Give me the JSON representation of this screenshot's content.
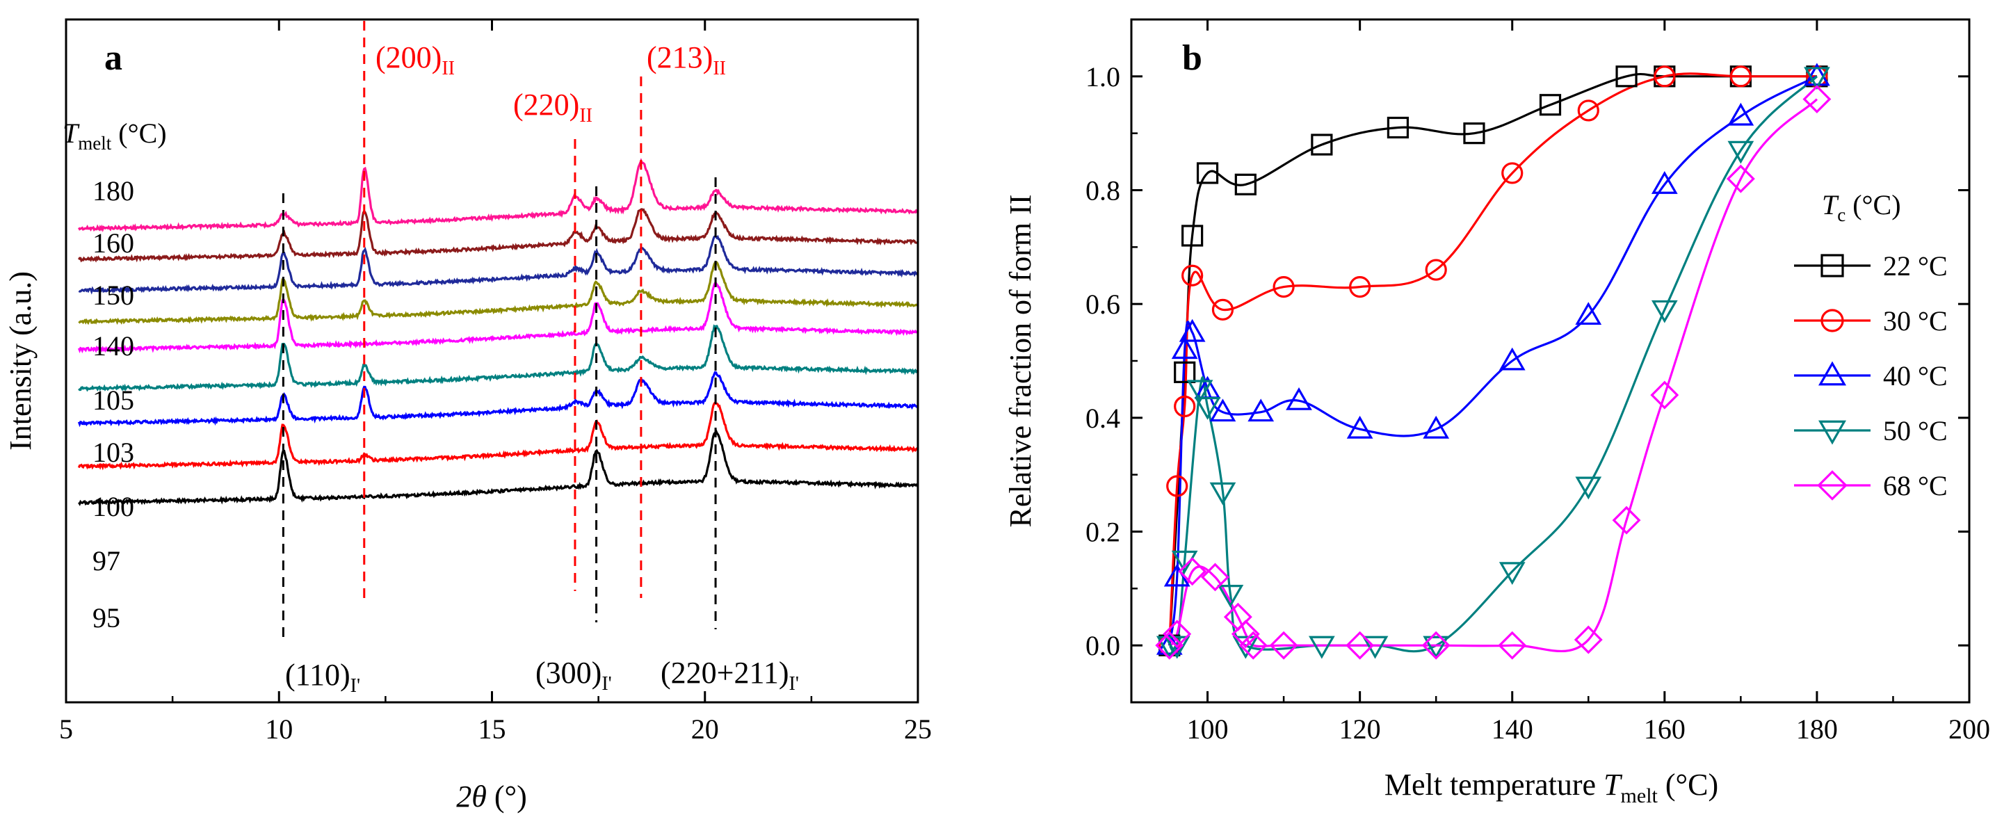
{
  "chart_data": [
    {
      "panel": "a",
      "type": "line",
      "title": "",
      "xlabel": "2θ (°)",
      "ylabel": "Intensity (a.u.)",
      "xlim": [
        5,
        25
      ],
      "xticks": [
        "5",
        "10",
        "15",
        "20",
        "25"
      ],
      "xtick_values": [
        5,
        10,
        15,
        20,
        25
      ],
      "legend_title": "Tmelt (°C)",
      "legend_title_main": "T",
      "legend_title_sub": "melt",
      "legend_title_tail": " (°C)",
      "series": [
        {
          "name": "180",
          "color": "#ff1493",
          "baseline": 180,
          "peaks": [
            [
              10.1,
              16,
              0.12
            ],
            [
              12.0,
              78,
              0.09
            ],
            [
              16.95,
              24,
              0.13
            ],
            [
              17.45,
              18,
              0.13
            ],
            [
              18.5,
              68,
              0.18
            ],
            [
              20.25,
              24,
              0.16
            ]
          ]
        },
        {
          "name": "160",
          "color": "#8b1a1a",
          "baseline": 160,
          "peaks": [
            [
              10.1,
              32,
              0.11
            ],
            [
              12.0,
              62,
              0.09
            ],
            [
              16.95,
              17,
              0.13
            ],
            [
              17.45,
              22,
              0.12
            ],
            [
              18.5,
              45,
              0.17
            ],
            [
              20.25,
              36,
              0.16
            ]
          ]
        },
        {
          "name": "150",
          "color": "#1f2a9a",
          "baseline": 150,
          "peaks": [
            [
              10.1,
              48,
              0.1
            ],
            [
              12.0,
              50,
              0.09
            ],
            [
              16.95,
              9,
              0.13
            ],
            [
              17.45,
              30,
              0.12
            ],
            [
              18.5,
              32,
              0.17
            ],
            [
              20.25,
              48,
              0.16
            ]
          ]
        },
        {
          "name": "140",
          "color": "#8b8b00",
          "baseline": 140,
          "peaks": [
            [
              10.1,
              55,
              0.1
            ],
            [
              12.0,
              22,
              0.09
            ],
            [
              17.45,
              32,
              0.12
            ],
            [
              18.5,
              16,
              0.17
            ],
            [
              20.25,
              54,
              0.16
            ]
          ]
        },
        {
          "name": "105",
          "color": "#ff00ff",
          "baseline": 105,
          "peaks": [
            [
              10.1,
              68,
              0.1
            ],
            [
              17.45,
              42,
              0.12
            ],
            [
              20.25,
              66,
              0.16
            ]
          ]
        },
        {
          "name": "103",
          "color": "#008080",
          "baseline": 103,
          "peaks": [
            [
              10.1,
              60,
              0.1
            ],
            [
              12.0,
              26,
              0.09
            ],
            [
              17.45,
              40,
              0.12
            ],
            [
              18.5,
              16,
              0.17
            ],
            [
              20.25,
              60,
              0.16
            ]
          ]
        },
        {
          "name": "100",
          "color": "#0000ff",
          "baseline": 100,
          "peaks": [
            [
              10.1,
              35,
              0.1
            ],
            [
              12.0,
              45,
              0.09
            ],
            [
              16.95,
              8,
              0.13
            ],
            [
              17.45,
              22,
              0.12
            ],
            [
              18.5,
              34,
              0.17
            ],
            [
              20.25,
              42,
              0.16
            ]
          ]
        },
        {
          "name": "97",
          "color": "#ff0000",
          "baseline": 97,
          "peaks": [
            [
              10.1,
              55,
              0.1
            ],
            [
              12.0,
              9,
              0.08
            ],
            [
              17.45,
              40,
              0.12
            ],
            [
              20.25,
              62,
              0.16
            ]
          ]
        },
        {
          "name": "95",
          "color": "#000000",
          "baseline": 95,
          "peaks": [
            [
              10.1,
              68,
              0.1
            ],
            [
              17.45,
              50,
              0.12
            ],
            [
              20.25,
              72,
              0.16
            ]
          ]
        }
      ],
      "peak_markers": [
        {
          "x": 10.1,
          "color": "#000000",
          "label_main": "(110)",
          "label_sub": "I'",
          "label_color": "#000000"
        },
        {
          "x": 17.45,
          "color": "#000000",
          "label_main": "(300)",
          "label_sub": "I'",
          "label_color": "#000000"
        },
        {
          "x": 20.25,
          "color": "#000000",
          "label_main": "(220+211)",
          "label_sub": "I'",
          "label_color": "#000000"
        },
        {
          "x": 12.0,
          "color": "#ff0000",
          "label_main": "(200)",
          "label_sub": "II",
          "label_color": "#ff0000"
        },
        {
          "x": 16.95,
          "color": "#ff0000",
          "label_main": "(220)",
          "label_sub": "II",
          "label_color": "#ff0000"
        },
        {
          "x": 18.5,
          "color": "#ff0000",
          "label_main": "(213)",
          "label_sub": "II",
          "label_color": "#ff0000"
        }
      ]
    },
    {
      "panel": "b",
      "type": "line",
      "title": "",
      "xlabel": "Melt temperature Tmelt (°C)",
      "xlabel_pre": "Melt temperature ",
      "xlabel_var": "T",
      "xlabel_sub": "melt",
      "xlabel_post": " (°C)",
      "ylabel": "Relative fraction of form II",
      "xlim": [
        90,
        200
      ],
      "ylim": [
        -0.1,
        1.1
      ],
      "xticks": [
        "100",
        "120",
        "140",
        "160",
        "180",
        "200"
      ],
      "xtick_values": [
        100,
        120,
        140,
        160,
        180,
        200
      ],
      "yticks": [
        "0.0",
        "0.2",
        "0.4",
        "0.6",
        "0.8",
        "1.0"
      ],
      "ytick_values": [
        0.0,
        0.2,
        0.4,
        0.6,
        0.8,
        1.0
      ],
      "legend_title": "Tc (°C)",
      "legend_title_main": "T",
      "legend_title_sub": "c",
      "legend_title_tail": " (°C)",
      "series": [
        {
          "name": "22 °C",
          "color": "#000000",
          "marker": "square",
          "x": [
            95,
            97,
            98,
            100,
            105,
            115,
            125,
            135,
            145,
            155,
            160,
            170,
            180
          ],
          "y": [
            0.0,
            0.48,
            0.72,
            0.83,
            0.81,
            0.88,
            0.91,
            0.9,
            0.95,
            1.0,
            1.0,
            1.0,
            1.0
          ]
        },
        {
          "name": "30 °C",
          "color": "#ff0000",
          "marker": "circle",
          "x": [
            95,
            96,
            97,
            98,
            102,
            110,
            120,
            130,
            140,
            150,
            160,
            170,
            180
          ],
          "y": [
            0.0,
            0.28,
            0.42,
            0.65,
            0.59,
            0.63,
            0.63,
            0.66,
            0.83,
            0.94,
            1.0,
            1.0,
            1.0
          ]
        },
        {
          "name": "40 °C",
          "color": "#0000ff",
          "marker": "triangle-up",
          "x": [
            95,
            96,
            97,
            98,
            100,
            102,
            107,
            112,
            120,
            130,
            140,
            150,
            160,
            170,
            180
          ],
          "y": [
            0.0,
            0.12,
            0.52,
            0.55,
            0.45,
            0.41,
            0.41,
            0.43,
            0.38,
            0.38,
            0.5,
            0.58,
            0.81,
            0.93,
            1.0
          ]
        },
        {
          "name": "50 °C",
          "color": "#008080",
          "marker": "triangle-down",
          "x": [
            95,
            96,
            97,
            99,
            100,
            102,
            103,
            105,
            115,
            122,
            130,
            140,
            150,
            160,
            170,
            180
          ],
          "y": [
            0.0,
            0.0,
            0.15,
            0.45,
            0.42,
            0.27,
            0.09,
            0.0,
            0.0,
            0.0,
            0.0,
            0.13,
            0.28,
            0.59,
            0.87,
            1.0
          ]
        },
        {
          "name": "68 °C",
          "color": "#ff00ff",
          "marker": "diamond",
          "x": [
            95,
            96,
            98,
            101,
            104,
            105,
            106,
            110,
            120,
            130,
            140,
            150,
            155,
            160,
            170,
            180
          ],
          "y": [
            0.0,
            0.02,
            0.13,
            0.12,
            0.05,
            0.02,
            0.0,
            0.0,
            0.0,
            0.0,
            0.0,
            0.01,
            0.22,
            0.44,
            0.82,
            0.96
          ]
        }
      ]
    }
  ]
}
